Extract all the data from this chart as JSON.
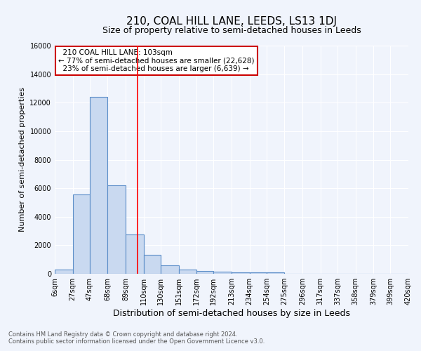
{
  "title": "210, COAL HILL LANE, LEEDS, LS13 1DJ",
  "subtitle": "Size of property relative to semi-detached houses in Leeds",
  "xlabel": "Distribution of semi-detached houses by size in Leeds",
  "ylabel": "Number of semi-detached properties",
  "footnote1": "Contains HM Land Registry data © Crown copyright and database right 2024.",
  "footnote2": "Contains public sector information licensed under the Open Government Licence v3.0.",
  "annotation_title": "210 COAL HILL LANE: 103sqm",
  "annotation_line1": "← 77% of semi-detached houses are smaller (22,628)",
  "annotation_line2": "23% of semi-detached houses are larger (6,639) →",
  "categories": [
    "6sqm",
    "27sqm",
    "47sqm",
    "68sqm",
    "89sqm",
    "110sqm",
    "130sqm",
    "151sqm",
    "172sqm",
    "192sqm",
    "213sqm",
    "234sqm",
    "254sqm",
    "275sqm",
    "296sqm",
    "317sqm",
    "337sqm",
    "358sqm",
    "379sqm",
    "399sqm",
    "420sqm"
  ],
  "bin_edges": [
    6,
    27,
    47,
    68,
    89,
    110,
    130,
    151,
    172,
    192,
    213,
    234,
    254,
    275,
    296,
    317,
    337,
    358,
    379,
    399,
    420
  ],
  "bar_heights": [
    280,
    5550,
    12400,
    6200,
    2750,
    1350,
    600,
    280,
    190,
    150,
    120,
    90,
    110,
    0,
    0,
    0,
    0,
    0,
    0,
    0
  ],
  "bar_color": "#c9d9f0",
  "bar_edge_color": "#5b8dc8",
  "red_line_x": 103,
  "ylim": [
    0,
    16000
  ],
  "background_color": "#f0f4fc",
  "grid_color": "#ffffff",
  "title_fontsize": 11,
  "subtitle_fontsize": 9,
  "ylabel_fontsize": 8,
  "xlabel_fontsize": 9,
  "tick_fontsize": 7,
  "annotation_fontsize": 7.5,
  "footnote_fontsize": 6,
  "annotation_box_color": "#ffffff",
  "annotation_box_edge": "#cc0000"
}
